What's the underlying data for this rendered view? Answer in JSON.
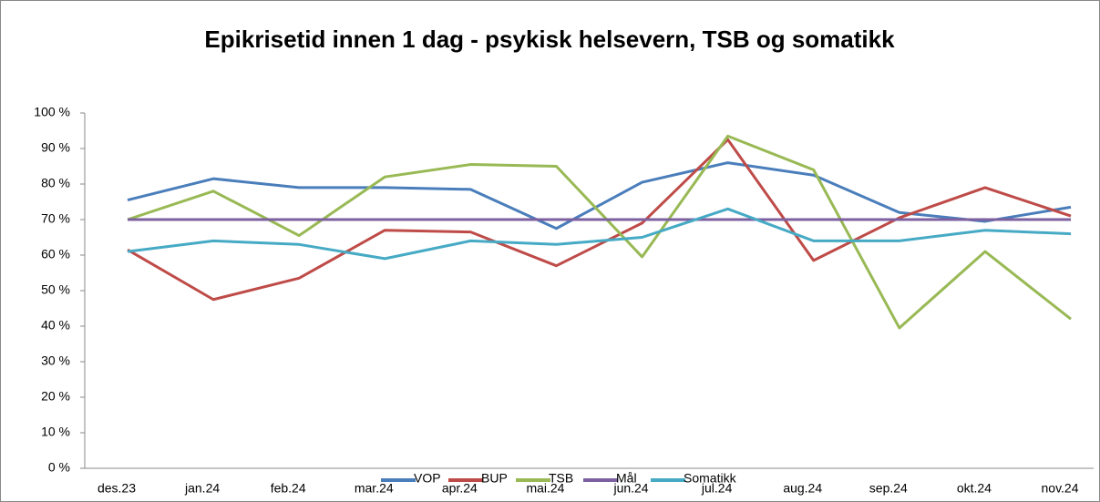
{
  "chart_data": {
    "type": "line",
    "title": "Epikrisetid innen 1 dag - psykisk helsevern, TSB og somatikk",
    "categories": [
      "des.23",
      "jan.24",
      "feb.24",
      "mar.24",
      "apr.24",
      "mai.24",
      "jun.24",
      "jul.24",
      "aug.24",
      "sep.24",
      "okt.24",
      "nov.24"
    ],
    "series": [
      {
        "name": "VOP",
        "color": "#4a7ebb",
        "values": [
          75.5,
          81.5,
          79,
          79,
          78.5,
          67.5,
          80.5,
          86,
          82.5,
          72,
          69.5,
          73.5
        ]
      },
      {
        "name": "BUP",
        "color": "#be4b48",
        "values": [
          61.5,
          47.5,
          53.5,
          67,
          66.5,
          57,
          69,
          92.5,
          58.5,
          70.5,
          79,
          71
        ]
      },
      {
        "name": "TSB",
        "color": "#98b954",
        "values": [
          70,
          78,
          65.5,
          82,
          85.5,
          85,
          59.5,
          93.5,
          84,
          39.5,
          61,
          42
        ]
      },
      {
        "name": "Mål",
        "color": "#7d60a0",
        "values": [
          70,
          70,
          70,
          70,
          70,
          70,
          70,
          70,
          70,
          70,
          70,
          70
        ]
      },
      {
        "name": "Somatikk",
        "color": "#46aac5",
        "values": [
          61,
          64,
          63,
          59,
          64,
          63,
          65,
          73,
          64,
          64,
          67,
          66
        ]
      }
    ],
    "ylim": [
      0,
      100
    ],
    "yticks": [
      {
        "value": 0,
        "label": "0 %"
      },
      {
        "value": 10,
        "label": "10 %"
      },
      {
        "value": 20,
        "label": "20 %"
      },
      {
        "value": 30,
        "label": "30 %"
      },
      {
        "value": 40,
        "label": "40 %"
      },
      {
        "value": 50,
        "label": "50 %"
      },
      {
        "value": 60,
        "label": "60 %"
      },
      {
        "value": 70,
        "label": "70 %"
      },
      {
        "value": 80,
        "label": "80 %"
      },
      {
        "value": 90,
        "label": "90 %"
      },
      {
        "value": 100,
        "label": "100 %"
      }
    ],
    "grid": false,
    "legend": "bottom"
  }
}
